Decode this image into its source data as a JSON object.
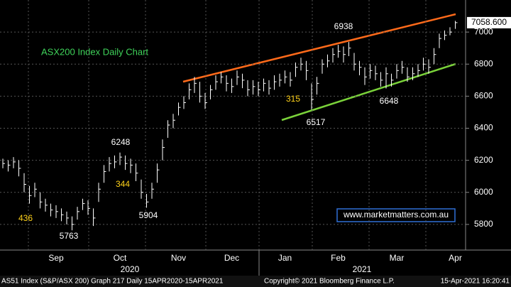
{
  "chart_data": {
    "type": "ohlc",
    "title": "ASX200 Index Daily Chart",
    "categories": [
      null,
      null,
      null,
      null,
      null,
      null,
      null,
      null,
      null,
      null,
      "Sep",
      null,
      null,
      null,
      null,
      null,
      null,
      null,
      null,
      null,
      null,
      null,
      "Oct",
      null,
      null,
      null,
      null,
      null,
      null,
      null,
      null,
      null,
      null,
      "Nov",
      null,
      null,
      null,
      null,
      null,
      null,
      null,
      null,
      null,
      "Dec",
      null,
      null,
      null,
      null,
      null,
      null,
      null,
      null,
      null,
      "Jan",
      null,
      null,
      null,
      null,
      null,
      null,
      null,
      null,
      null,
      "Feb",
      null,
      null,
      null,
      null,
      null,
      null,
      null,
      null,
      null,
      null,
      "Mar",
      null,
      null,
      null,
      null,
      null,
      null,
      null,
      null,
      null,
      null,
      "Apr"
    ],
    "years": [
      "2020",
      "2021"
    ],
    "high": [
      6210,
      6200,
      6220,
      6200,
      6120,
      6040,
      6060,
      6000,
      5960,
      5930,
      5920,
      5900,
      5880,
      5850,
      5910,
      5960,
      5950,
      5900,
      6060,
      6170,
      6220,
      6230,
      6248,
      6230,
      6210,
      6180,
      6080,
      5990,
      6060,
      6180,
      6330,
      6450,
      6490,
      6560,
      6600,
      6680,
      6720,
      6690,
      6620,
      6670,
      6730,
      6750,
      6730,
      6710,
      6760,
      6740,
      6700,
      6700,
      6690,
      6710,
      6700,
      6730,
      6740,
      6760,
      6750,
      6810,
      6840,
      6820,
      6680,
      6720,
      6830,
      6860,
      6900,
      6920,
      6910,
      6938,
      6870,
      6820,
      6780,
      6800,
      6790,
      6750,
      6780,
      6740,
      6800,
      6820,
      6780,
      6780,
      6800,
      6840,
      6830,
      6900,
      6990,
      7010,
      7030,
      7070
    ],
    "low": [
      6150,
      6130,
      6150,
      6100,
      6000,
      5930,
      5970,
      5900,
      5880,
      5850,
      5840,
      5820,
      5800,
      5763,
      5830,
      5890,
      5860,
      5790,
      5940,
      6060,
      6130,
      6150,
      6170,
      6140,
      6120,
      6070,
      5960,
      5904,
      5960,
      6060,
      6200,
      6340,
      6400,
      6480,
      6520,
      6580,
      6620,
      6560,
      6520,
      6580,
      6640,
      6680,
      6630,
      6620,
      6670,
      6650,
      6600,
      6610,
      6600,
      6630,
      6610,
      6640,
      6660,
      6680,
      6660,
      6720,
      6760,
      6700,
      6517,
      6610,
      6740,
      6780,
      6810,
      6840,
      6810,
      6850,
      6760,
      6730,
      6670,
      6710,
      6700,
      6660,
      6648,
      6660,
      6710,
      6740,
      6690,
      6700,
      6720,
      6760,
      6740,
      6800,
      6900,
      6950,
      6980,
      7020
    ],
    "close": [
      6180,
      6170,
      6190,
      6150,
      6050,
      5980,
      6020,
      5940,
      5920,
      5890,
      5880,
      5860,
      5840,
      5800,
      5880,
      5930,
      5900,
      5840,
      6020,
      6130,
      6180,
      6190,
      6220,
      6180,
      6170,
      6120,
      6000,
      5940,
      6020,
      6140,
      6280,
      6420,
      6450,
      6530,
      6560,
      6640,
      6680,
      6600,
      6560,
      6640,
      6690,
      6720,
      6680,
      6660,
      6720,
      6700,
      6640,
      6660,
      6640,
      6680,
      6650,
      6690,
      6700,
      6720,
      6700,
      6780,
      6800,
      6760,
      6580,
      6680,
      6800,
      6820,
      6860,
      6880,
      6860,
      6900,
      6800,
      6780,
      6720,
      6760,
      6740,
      6700,
      6740,
      6700,
      6760,
      6780,
      6720,
      6740,
      6760,
      6800,
      6780,
      6860,
      6960,
      6980,
      7000,
      7058.6
    ],
    "color": "#ffffff",
    "last_price": {
      "value": 7058.6,
      "label": "7058.600"
    },
    "ylim": [
      5640,
      7200
    ],
    "yticks": [
      5800,
      6000,
      6200,
      6400,
      6600,
      6800,
      7000
    ],
    "grid": true,
    "annotations": [
      "436",
      "5763",
      "6248",
      "344",
      "5904",
      "315",
      "6517",
      "6938",
      "6648"
    ],
    "watermark": "www.marketmatters.com.au",
    "footer": [
      "AS51 Index (S&P/ASX 200) Graph 217  Daily 15APR2020-15APR2021",
      "Copyright© 2021 Bloomberg Finance L.P.",
      "15-Apr-2021 16:20:41"
    ]
  }
}
